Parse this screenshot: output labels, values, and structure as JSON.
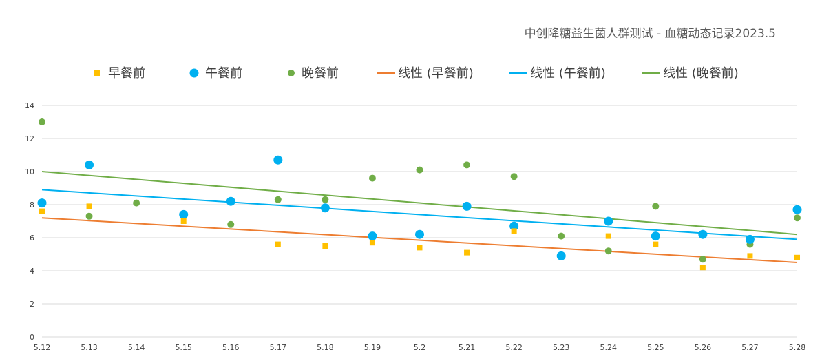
{
  "chart_data": {
    "type": "scatter",
    "title": "中创降糖益生菌人群测试 - 血糖动态记录2023.5",
    "xlabel": "",
    "ylabel": "",
    "categories": [
      "5.12",
      "5.13",
      "5.14",
      "5.15",
      "5.16",
      "5.17",
      "5.18",
      "5.19",
      "5.2",
      "5.21",
      "5.22",
      "5.23",
      "5.24",
      "5.25",
      "5.26",
      "5.27",
      "5.28"
    ],
    "ylim": [
      0,
      14
    ],
    "yticks": [
      "0",
      "2",
      "4",
      "6",
      "8",
      "10",
      "12",
      "14"
    ],
    "grid": true,
    "legend_position": "top",
    "series": [
      {
        "name": "早餐前",
        "color": "#ffc000",
        "marker": "square",
        "values": [
          7.6,
          7.9,
          null,
          7.0,
          null,
          5.6,
          5.5,
          5.7,
          5.4,
          5.1,
          6.4,
          null,
          6.1,
          5.6,
          4.2,
          4.9,
          4.8
        ]
      },
      {
        "name": "午餐前",
        "color": "#00b0f0",
        "marker": "circle",
        "values": [
          8.1,
          10.4,
          null,
          7.4,
          8.2,
          10.7,
          7.8,
          6.1,
          6.2,
          7.9,
          6.7,
          4.9,
          7.0,
          6.1,
          6.2,
          5.9,
          7.7
        ]
      },
      {
        "name": "晚餐前",
        "color": "#70ad47",
        "marker": "circle",
        "values": [
          13.0,
          7.3,
          8.1,
          null,
          6.8,
          8.3,
          8.3,
          9.6,
          10.1,
          10.4,
          9.7,
          6.1,
          5.2,
          7.9,
          4.7,
          5.6,
          7.2
        ]
      }
    ],
    "trendlines": [
      {
        "name": "线性 (早餐前)",
        "color": "#ed7d31",
        "start": 7.2,
        "end": 4.5
      },
      {
        "name": "线性 (午餐前)",
        "color": "#00b0f0",
        "start": 8.9,
        "end": 5.9
      },
      {
        "name": "线性 (晚餐前)",
        "color": "#70ad47",
        "start": 10.0,
        "end": 6.2
      }
    ]
  }
}
